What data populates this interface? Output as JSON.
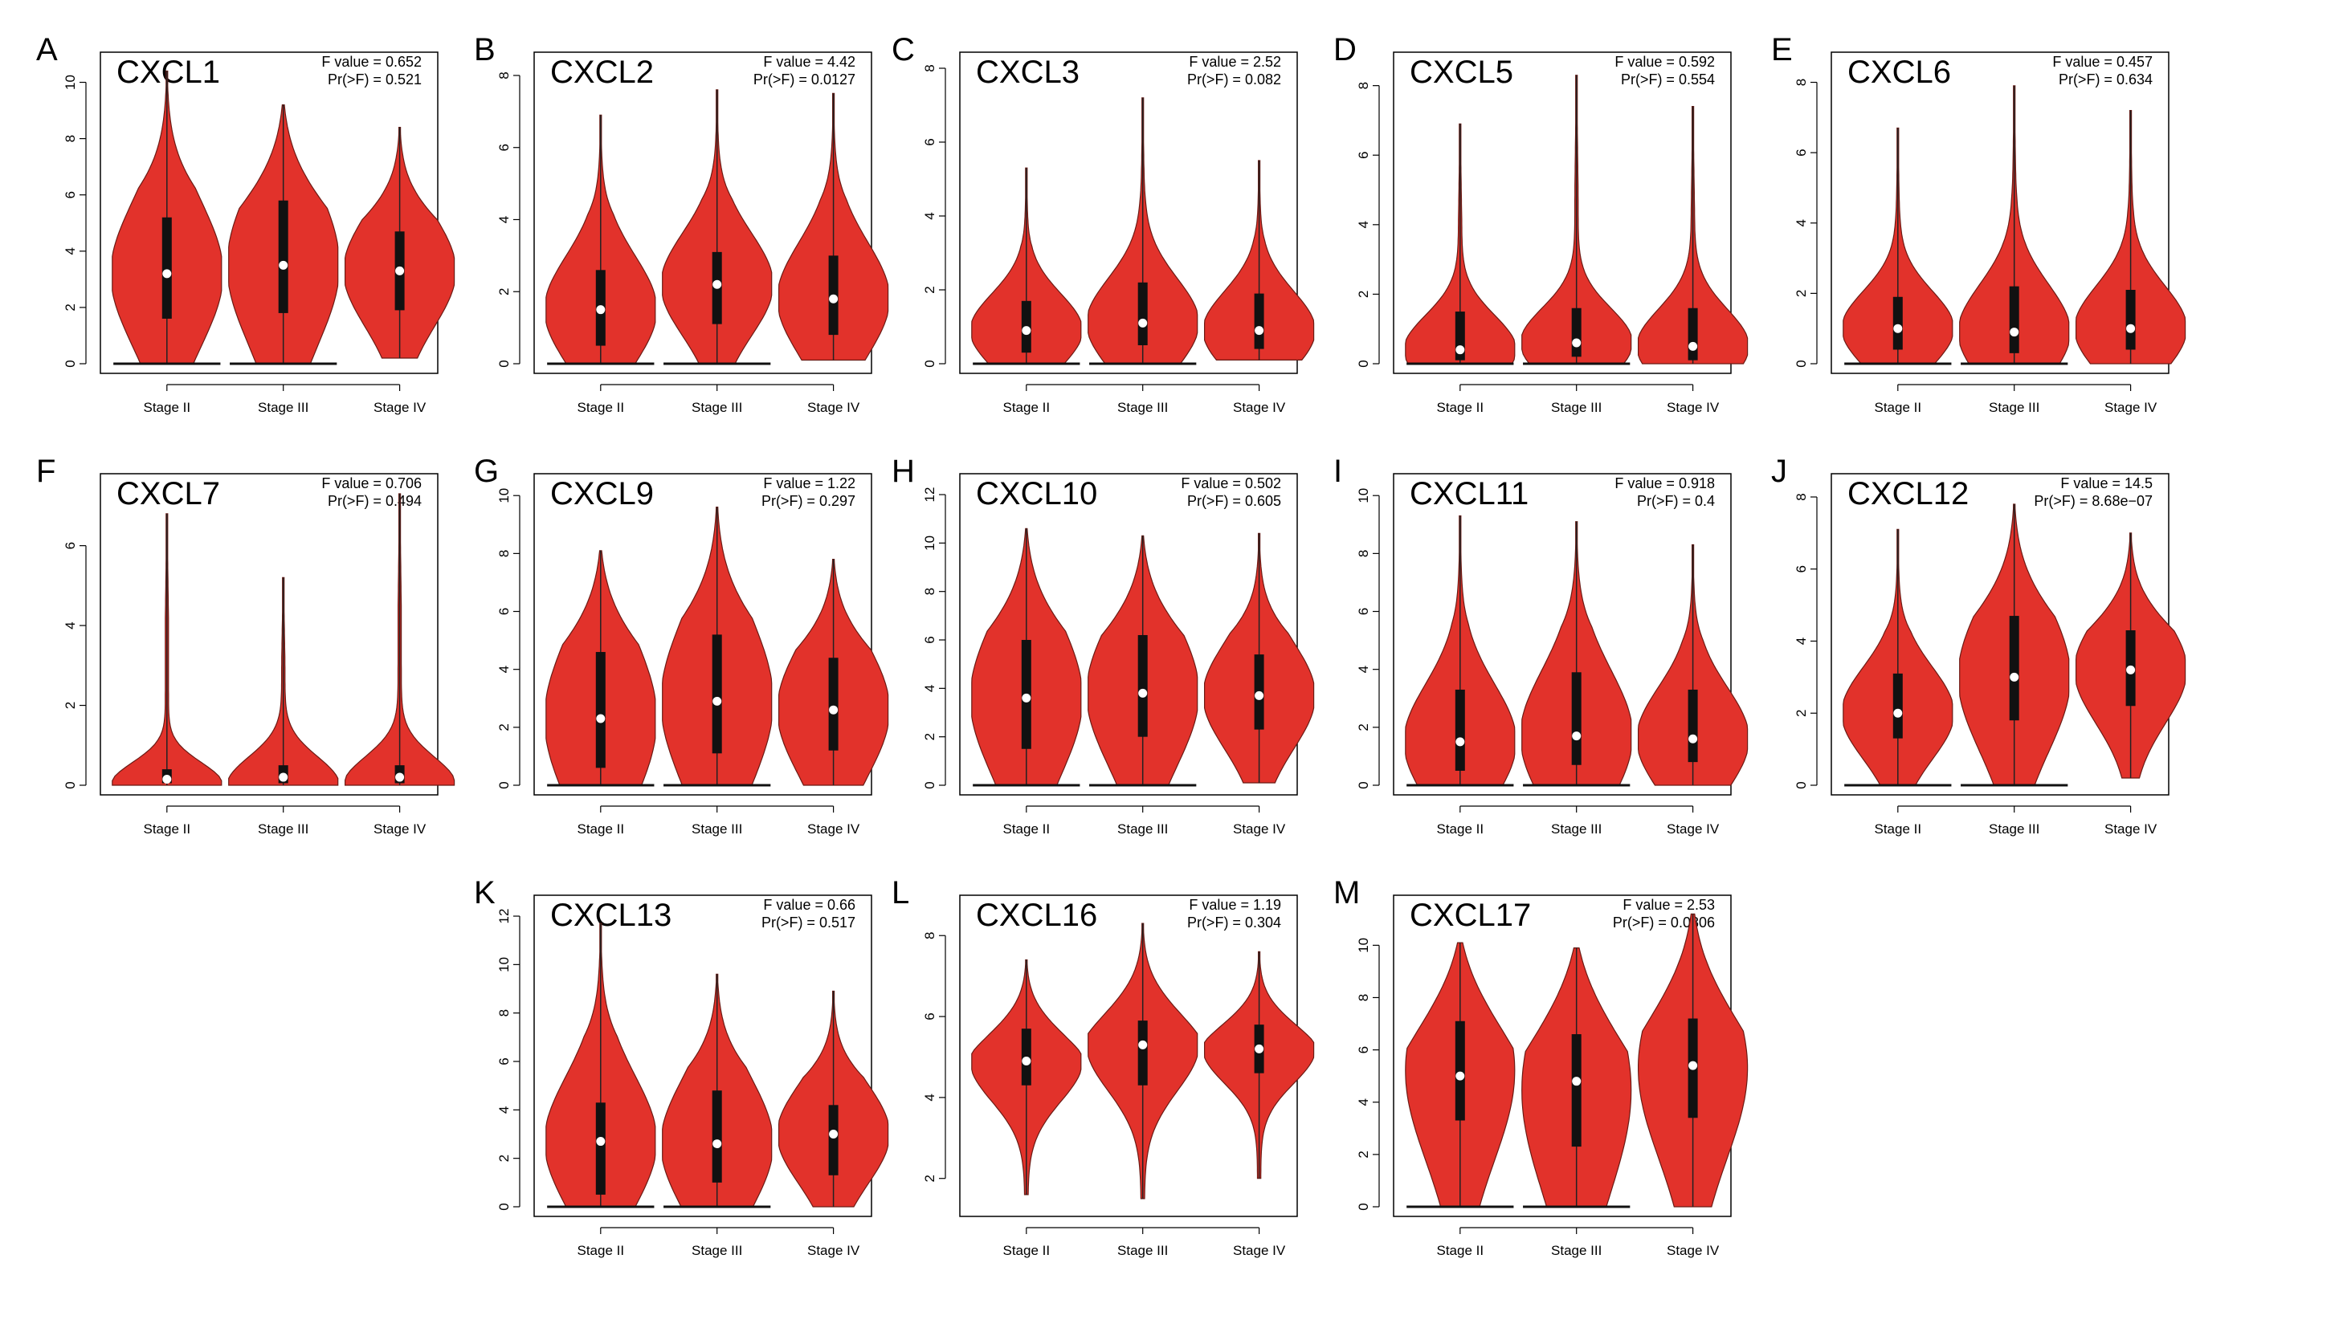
{
  "figure": {
    "violin_fill": "#E2322B",
    "violin_stroke": "#6b1a14",
    "box_color": "#111111",
    "median_color": "#ffffff",
    "stat_label_f": "F value = ",
    "stat_label_p": "Pr(>F) = "
  },
  "chart_data": [
    {
      "letter": "A",
      "type": "violin",
      "title": "CXCL1",
      "f_value": "0.652",
      "pr_f": "0.521",
      "categories": [
        "Stage II",
        "Stage III",
        "Stage IV"
      ],
      "yticks": [
        0,
        2,
        4,
        6,
        8,
        10
      ],
      "ylim": [
        0,
        10.5
      ],
      "groups": [
        {
          "min": 0,
          "q1": 1.6,
          "median": 3.2,
          "q3": 5.2,
          "max": 10.4,
          "zero_heavy": true
        },
        {
          "min": 0,
          "q1": 1.8,
          "median": 3.5,
          "q3": 5.8,
          "max": 9.2,
          "zero_heavy": true
        },
        {
          "min": 0.2,
          "q1": 1.9,
          "median": 3.3,
          "q3": 4.7,
          "max": 8.4,
          "zero_heavy": false
        }
      ]
    },
    {
      "letter": "B",
      "type": "violin",
      "title": "CXCL2",
      "f_value": "4.42",
      "pr_f": "0.0127",
      "categories": [
        "Stage II",
        "Stage III",
        "Stage IV"
      ],
      "yticks": [
        0,
        2,
        4,
        6,
        8
      ],
      "ylim": [
        0,
        8.2
      ],
      "groups": [
        {
          "min": 0,
          "q1": 0.5,
          "median": 1.5,
          "q3": 2.6,
          "max": 6.9,
          "zero_heavy": true
        },
        {
          "min": 0,
          "q1": 1.1,
          "median": 2.2,
          "q3": 3.1,
          "max": 7.6,
          "zero_heavy": true
        },
        {
          "min": 0.1,
          "q1": 0.8,
          "median": 1.8,
          "q3": 3.0,
          "max": 7.5,
          "zero_heavy": false
        }
      ]
    },
    {
      "letter": "C",
      "type": "violin",
      "title": "CXCL3",
      "f_value": "2.52",
      "pr_f": "0.082",
      "categories": [
        "Stage II",
        "Stage III",
        "Stage IV"
      ],
      "yticks": [
        0,
        2,
        4,
        6,
        8
      ],
      "ylim": [
        0,
        8
      ],
      "groups": [
        {
          "min": 0,
          "q1": 0.3,
          "median": 0.9,
          "q3": 1.7,
          "max": 5.3,
          "zero_heavy": true
        },
        {
          "min": 0,
          "q1": 0.5,
          "median": 1.1,
          "q3": 2.2,
          "max": 7.2,
          "zero_heavy": true
        },
        {
          "min": 0.1,
          "q1": 0.4,
          "median": 0.9,
          "q3": 1.9,
          "max": 5.5,
          "zero_heavy": false
        }
      ]
    },
    {
      "letter": "D",
      "type": "violin",
      "title": "CXCL5",
      "f_value": "0.592",
      "pr_f": "0.554",
      "categories": [
        "Stage II",
        "Stage III",
        "Stage IV"
      ],
      "yticks": [
        0,
        2,
        4,
        6,
        8
      ],
      "ylim": [
        0,
        8.5
      ],
      "groups": [
        {
          "min": 0,
          "q1": 0.1,
          "median": 0.4,
          "q3": 1.5,
          "max": 6.9,
          "zero_heavy": true
        },
        {
          "min": 0,
          "q1": 0.2,
          "median": 0.6,
          "q3": 1.6,
          "max": 8.3,
          "zero_heavy": true
        },
        {
          "min": 0,
          "q1": 0.1,
          "median": 0.5,
          "q3": 1.6,
          "max": 7.4,
          "zero_heavy": false
        }
      ]
    },
    {
      "letter": "E",
      "type": "violin",
      "title": "CXCL6",
      "f_value": "0.457",
      "pr_f": "0.634",
      "categories": [
        "Stage II",
        "Stage III",
        "Stage IV"
      ],
      "yticks": [
        0,
        2,
        4,
        6,
        8
      ],
      "ylim": [
        0,
        8.4
      ],
      "groups": [
        {
          "min": 0,
          "q1": 0.4,
          "median": 1.0,
          "q3": 1.9,
          "max": 6.7,
          "zero_heavy": true
        },
        {
          "min": 0,
          "q1": 0.3,
          "median": 0.9,
          "q3": 2.2,
          "max": 7.9,
          "zero_heavy": true
        },
        {
          "min": 0,
          "q1": 0.4,
          "median": 1.0,
          "q3": 2.1,
          "max": 7.2,
          "zero_heavy": false
        }
      ]
    },
    {
      "letter": "F",
      "type": "violin",
      "title": "CXCL7",
      "f_value": "0.706",
      "pr_f": "0.494",
      "categories": [
        "Stage II",
        "Stage III",
        "Stage IV"
      ],
      "yticks": [
        0,
        2,
        4,
        6
      ],
      "ylim": [
        0,
        7.4
      ],
      "groups": [
        {
          "min": 0,
          "q1": 0.05,
          "median": 0.15,
          "q3": 0.4,
          "max": 6.8,
          "zero_heavy": false,
          "spiky": true
        },
        {
          "min": 0,
          "q1": 0.05,
          "median": 0.2,
          "q3": 0.5,
          "max": 5.2,
          "zero_heavy": false,
          "spiky": true
        },
        {
          "min": 0,
          "q1": 0.05,
          "median": 0.2,
          "q3": 0.5,
          "max": 7.3,
          "zero_heavy": false,
          "spiky": true
        }
      ]
    },
    {
      "letter": "G",
      "type": "violin",
      "title": "CXCL9",
      "f_value": "1.22",
      "pr_f": "0.297",
      "categories": [
        "Stage II",
        "Stage III",
        "Stage IV"
      ],
      "yticks": [
        0,
        2,
        4,
        6,
        8,
        10
      ],
      "ylim": [
        0,
        10.2
      ],
      "groups": [
        {
          "min": 0,
          "q1": 0.6,
          "median": 2.3,
          "q3": 4.6,
          "max": 8.1,
          "zero_heavy": true
        },
        {
          "min": 0,
          "q1": 1.1,
          "median": 2.9,
          "q3": 5.2,
          "max": 9.6,
          "zero_heavy": true
        },
        {
          "min": 0,
          "q1": 1.2,
          "median": 2.6,
          "q3": 4.4,
          "max": 7.8,
          "zero_heavy": false
        }
      ]
    },
    {
      "letter": "H",
      "type": "violin",
      "title": "CXCL10",
      "f_value": "0.502",
      "pr_f": "0.605",
      "categories": [
        "Stage II",
        "Stage III",
        "Stage IV"
      ],
      "yticks": [
        0,
        2,
        4,
        6,
        8,
        10,
        12
      ],
      "ylim": [
        0,
        12.2
      ],
      "groups": [
        {
          "min": 0,
          "q1": 1.5,
          "median": 3.6,
          "q3": 6.0,
          "max": 10.6,
          "zero_heavy": true
        },
        {
          "min": 0,
          "q1": 2.0,
          "median": 3.8,
          "q3": 6.2,
          "max": 10.3,
          "zero_heavy": true
        },
        {
          "min": 0.1,
          "q1": 2.3,
          "median": 3.7,
          "q3": 5.4,
          "max": 10.4,
          "zero_heavy": false
        }
      ]
    },
    {
      "letter": "I",
      "type": "violin",
      "title": "CXCL11",
      "f_value": "0.918",
      "pr_f": "0.4",
      "categories": [
        "Stage II",
        "Stage III",
        "Stage IV"
      ],
      "yticks": [
        0,
        2,
        4,
        6,
        8,
        10
      ],
      "ylim": [
        0,
        10.2
      ],
      "groups": [
        {
          "min": 0,
          "q1": 0.5,
          "median": 1.5,
          "q3": 3.3,
          "max": 9.3,
          "zero_heavy": true
        },
        {
          "min": 0,
          "q1": 0.7,
          "median": 1.7,
          "q3": 3.9,
          "max": 9.1,
          "zero_heavy": true
        },
        {
          "min": 0,
          "q1": 0.8,
          "median": 1.6,
          "q3": 3.3,
          "max": 8.3,
          "zero_heavy": false
        }
      ]
    },
    {
      "letter": "J",
      "type": "violin",
      "title": "CXCL12",
      "f_value": "14.5",
      "pr_f": "8.68e−07",
      "categories": [
        "Stage II",
        "Stage III",
        "Stage IV"
      ],
      "yticks": [
        0,
        2,
        4,
        6,
        8
      ],
      "ylim": [
        0,
        8.2
      ],
      "groups": [
        {
          "min": 0,
          "q1": 1.3,
          "median": 2.0,
          "q3": 3.1,
          "max": 7.1,
          "zero_heavy": true
        },
        {
          "min": 0,
          "q1": 1.8,
          "median": 3.0,
          "q3": 4.7,
          "max": 7.8,
          "zero_heavy": true
        },
        {
          "min": 0.2,
          "q1": 2.2,
          "median": 3.2,
          "q3": 4.3,
          "max": 7.0,
          "zero_heavy": false
        }
      ]
    },
    {
      "letter": "K",
      "type": "violin",
      "title": "CXCL13",
      "f_value": "0.66",
      "pr_f": "0.517",
      "categories": [
        "Stage II",
        "Stage III",
        "Stage IV"
      ],
      "yticks": [
        0,
        2,
        4,
        6,
        8,
        10,
        12
      ],
      "ylim": [
        0,
        12.2
      ],
      "groups": [
        {
          "min": 0,
          "q1": 0.5,
          "median": 2.7,
          "q3": 4.3,
          "max": 11.7,
          "zero_heavy": true
        },
        {
          "min": 0,
          "q1": 1.0,
          "median": 2.6,
          "q3": 4.8,
          "max": 9.6,
          "zero_heavy": true
        },
        {
          "min": 0,
          "q1": 1.3,
          "median": 3.0,
          "q3": 4.2,
          "max": 8.9,
          "zero_heavy": false
        }
      ]
    },
    {
      "letter": "L",
      "type": "violin",
      "title": "CXCL16",
      "f_value": "1.19",
      "pr_f": "0.304",
      "categories": [
        "Stage II",
        "Stage III",
        "Stage IV"
      ],
      "yticks": [
        2,
        4,
        6,
        8
      ],
      "ylim": [
        1.3,
        8.6
      ],
      "groups": [
        {
          "min": 1.6,
          "q1": 4.3,
          "median": 4.9,
          "q3": 5.7,
          "max": 7.4,
          "zero_heavy": false,
          "shape": "normal"
        },
        {
          "min": 1.5,
          "q1": 4.3,
          "median": 5.3,
          "q3": 5.9,
          "max": 8.3,
          "zero_heavy": false,
          "shape": "normal"
        },
        {
          "min": 2.0,
          "q1": 4.6,
          "median": 5.2,
          "q3": 5.8,
          "max": 7.6,
          "zero_heavy": false,
          "shape": "normal"
        }
      ]
    },
    {
      "letter": "M",
      "type": "violin",
      "title": "CXCL17",
      "f_value": "2.53",
      "pr_f": "0.0806",
      "categories": [
        "Stage II",
        "Stage III",
        "Stage IV"
      ],
      "yticks": [
        0,
        2,
        4,
        6,
        8,
        10
      ],
      "ylim": [
        0,
        11.3
      ],
      "groups": [
        {
          "min": 0,
          "q1": 3.3,
          "median": 5.0,
          "q3": 7.1,
          "max": 10.1,
          "zero_heavy": true,
          "shape": "broad"
        },
        {
          "min": 0,
          "q1": 2.3,
          "median": 4.8,
          "q3": 6.6,
          "max": 9.9,
          "zero_heavy": true,
          "shape": "broad"
        },
        {
          "min": 0,
          "q1": 3.4,
          "median": 5.4,
          "q3": 7.2,
          "max": 11.2,
          "zero_heavy": false,
          "shape": "broad"
        }
      ]
    }
  ]
}
